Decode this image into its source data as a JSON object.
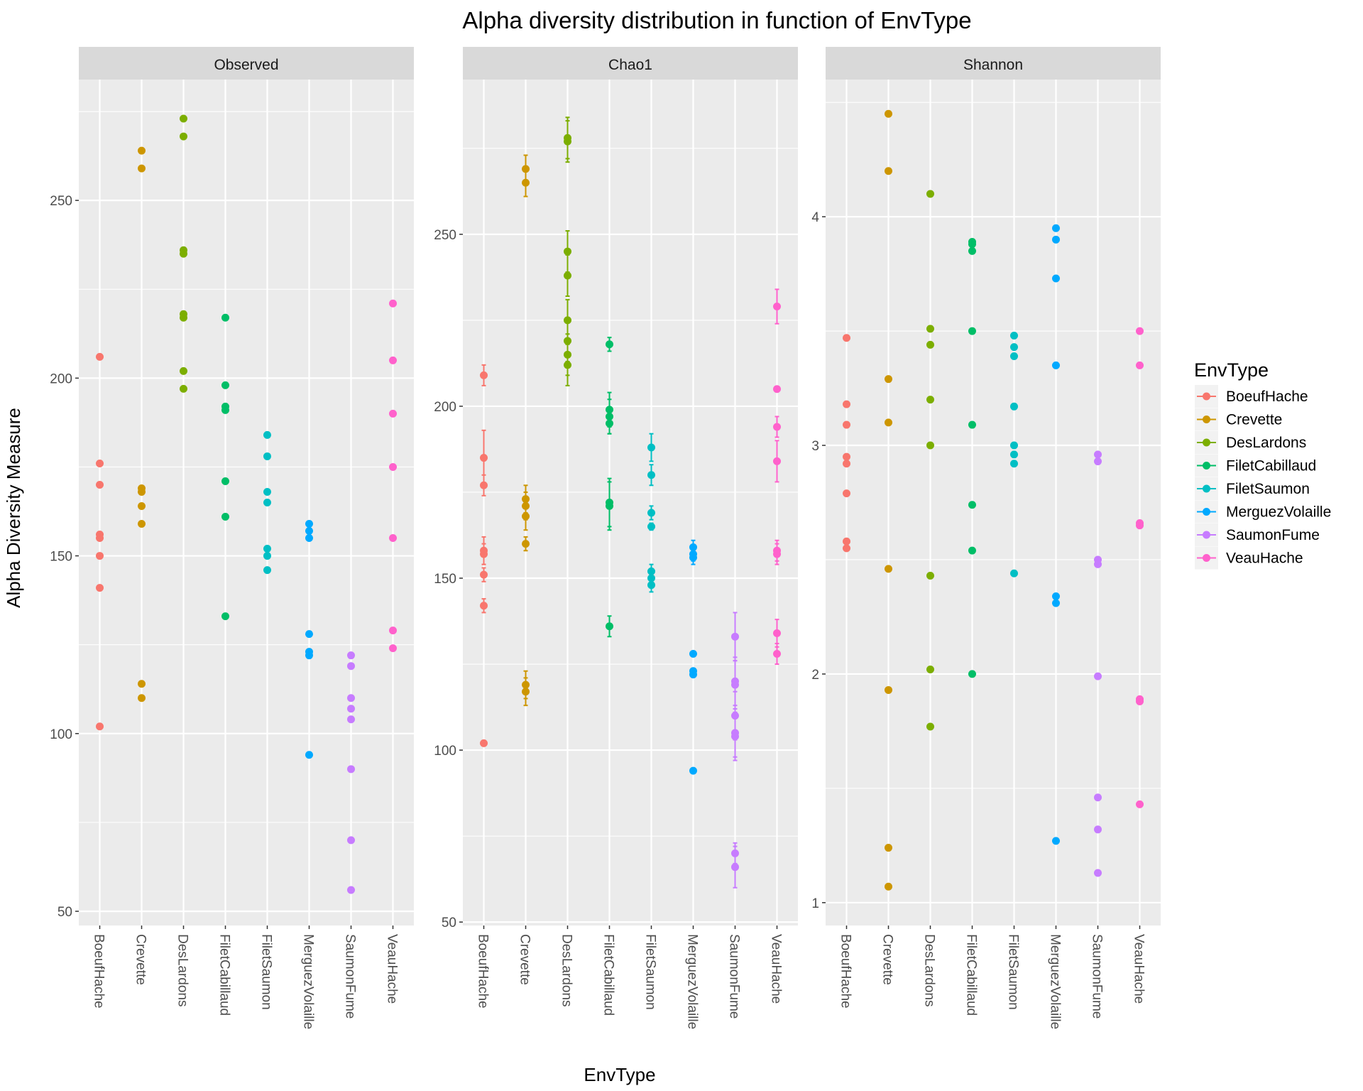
{
  "chart_data": {
    "type": "scatter",
    "title": "Alpha diversity distribution in function of EnvType",
    "xlabel": "EnvType",
    "ylabel": "Alpha Diversity Measure",
    "categories": [
      "BoeufHache",
      "Crevette",
      "DesLardons",
      "FiletCabillaud",
      "FiletSaumon",
      "MerguezVolaille",
      "SaumonFume",
      "VeauHache"
    ],
    "colors": {
      "BoeufHache": "#F8766D",
      "Crevette": "#CD9600",
      "DesLardons": "#7CAE00",
      "FiletCabillaud": "#00BE67",
      "FiletSaumon": "#00BFC4",
      "MerguezVolaille": "#00A9FF",
      "SaumonFume": "#C77CFF",
      "VeauHache": "#FF61CC"
    },
    "legend": {
      "title": "EnvType",
      "position": "right",
      "entries": [
        "BoeufHache",
        "Crevette",
        "DesLardons",
        "FiletCabillaud",
        "FiletSaumon",
        "MerguezVolaille",
        "SaumonFume",
        "VeauHache"
      ]
    },
    "panels": [
      {
        "strip": "Observed",
        "ylim": [
          46,
          284
        ],
        "ticks": [
          50,
          100,
          150,
          200,
          250
        ],
        "tick_labels": [
          "50",
          "100",
          "150",
          "200",
          "250"
        ],
        "series": [
          {
            "name": "BoeufHache",
            "values": [
              206,
              176,
              170,
              156,
              155,
              150,
              141,
              102
            ]
          },
          {
            "name": "Crevette",
            "values": [
              264,
              259,
              169,
              168,
              164,
              159,
              114,
              110
            ]
          },
          {
            "name": "DesLardons",
            "values": [
              273,
              268,
              236,
              235,
              218,
              217,
              202,
              197
            ]
          },
          {
            "name": "FiletCabillaud",
            "values": [
              217,
              198,
              192,
              191,
              171,
              161,
              133
            ]
          },
          {
            "name": "FiletSaumon",
            "values": [
              184,
              178,
              168,
              165,
              152,
              150,
              146
            ]
          },
          {
            "name": "MerguezVolaille",
            "values": [
              159,
              157,
              155,
              128,
              123,
              122,
              94
            ]
          },
          {
            "name": "SaumonFume",
            "values": [
              122,
              119,
              110,
              107,
              104,
              90,
              70,
              56
            ]
          },
          {
            "name": "VeauHache",
            "values": [
              221,
              205,
              190,
              175,
              155,
              129,
              124
            ]
          }
        ]
      },
      {
        "strip": "Chao1",
        "ylim": [
          49,
          295
        ],
        "ticks": [
          50,
          100,
          150,
          200,
          250
        ],
        "tick_labels": [
          "50",
          "100",
          "150",
          "200",
          "250"
        ],
        "series": [
          {
            "name": "BoeufHache",
            "values": [
              209,
              185,
              177,
              158,
              157,
              151,
              142,
              102
            ],
            "errors": [
              3,
              8,
              3,
              4,
              3,
              2,
              2,
              0
            ]
          },
          {
            "name": "Crevette",
            "values": [
              269,
              265,
              173,
              171,
              168,
              160,
              119,
              117
            ],
            "errors": [
              4,
              4,
              4,
              4,
              4,
              2,
              4,
              4
            ]
          },
          {
            "name": "DesLardons",
            "values": [
              278,
              277,
              245,
              238,
              225,
              219,
              215,
              212
            ],
            "errors": [
              6,
              6,
              6,
              6,
              6,
              6,
              6,
              6
            ]
          },
          {
            "name": "FiletCabillaud",
            "values": [
              218,
              199,
              197,
              195,
              172,
              171,
              136
            ],
            "errors": [
              2,
              5,
              5,
              3,
              7,
              7,
              3
            ]
          },
          {
            "name": "FiletSaumon",
            "values": [
              188,
              180,
              169,
              165,
              152,
              150,
              148
            ],
            "errors": [
              4,
              3,
              2,
              1,
              2,
              2,
              2
            ]
          },
          {
            "name": "MerguezVolaille",
            "values": [
              159,
              157,
              156,
              128,
              123,
              122,
              94
            ],
            "errors": [
              2,
              2,
              2,
              0,
              0,
              0,
              0
            ]
          },
          {
            "name": "SaumonFume",
            "values": [
              133,
              120,
              119,
              110,
              105,
              104,
              70,
              66
            ],
            "errors": [
              7,
              7,
              7,
              7,
              7,
              7,
              3,
              6
            ]
          },
          {
            "name": "VeauHache",
            "values": [
              229,
              205,
              194,
              184,
              158,
              157,
              134,
              128
            ],
            "errors": [
              5,
              0,
              3,
              6,
              3,
              3,
              4,
              3
            ]
          }
        ]
      },
      {
        "strip": "Shannon",
        "ylim": [
          0.9,
          4.6
        ],
        "ticks": [
          1,
          2,
          3,
          4
        ],
        "tick_labels": [
          "1",
          "2",
          "3",
          "4"
        ],
        "series": [
          {
            "name": "BoeufHache",
            "values": [
              3.47,
              3.18,
              3.09,
              2.95,
              2.92,
              2.79,
              2.58,
              2.55
            ]
          },
          {
            "name": "Crevette",
            "values": [
              4.45,
              4.2,
              3.29,
              3.1,
              2.46,
              1.93,
              1.24,
              1.07
            ]
          },
          {
            "name": "DesLardons",
            "values": [
              4.1,
              3.51,
              3.44,
              3.2,
              3.0,
              2.43,
              2.02,
              1.77
            ]
          },
          {
            "name": "FiletCabillaud",
            "values": [
              3.89,
              3.88,
              3.85,
              3.5,
              3.09,
              2.74,
              2.54,
              2.0
            ]
          },
          {
            "name": "FiletSaumon",
            "values": [
              3.48,
              3.43,
              3.39,
              3.17,
              3.0,
              2.96,
              2.92,
              2.44
            ]
          },
          {
            "name": "MerguezVolaille",
            "values": [
              3.95,
              3.9,
              3.73,
              3.35,
              2.34,
              2.31,
              1.27
            ]
          },
          {
            "name": "SaumonFume",
            "values": [
              2.96,
              2.93,
              2.5,
              2.48,
              1.99,
              1.46,
              1.32,
              1.13
            ]
          },
          {
            "name": "VeauHache",
            "values": [
              3.5,
              3.35,
              2.66,
              2.65,
              1.89,
              1.88,
              1.43
            ]
          }
        ]
      }
    ]
  }
}
